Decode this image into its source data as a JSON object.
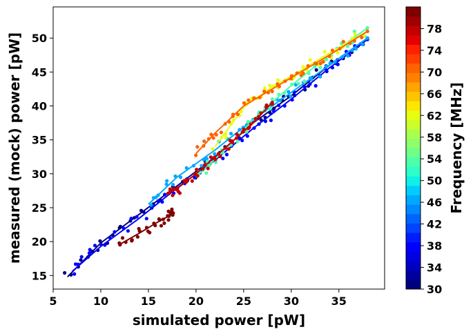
{
  "chart_data": {
    "type": "scatter",
    "title": "",
    "xlabel": "simulated power [pW]",
    "ylabel": "measured (mock) power [pW]",
    "xlim": [
      5,
      39.8
    ],
    "ylim": [
      13,
      54.6
    ],
    "xticks": [
      "5",
      "10",
      "15",
      "20",
      "25",
      "30",
      "35"
    ],
    "yticks": [
      "15",
      "20",
      "25",
      "30",
      "35",
      "40",
      "45",
      "50"
    ],
    "grid": false,
    "legend": "none",
    "colorbar": {
      "label": "Frequency [MHz]",
      "range": [
        30,
        82
      ],
      "ticks": [
        "30",
        "34",
        "38",
        "42",
        "46",
        "50",
        "54",
        "58",
        "62",
        "66",
        "70",
        "74",
        "78"
      ],
      "colormap": "jet",
      "colors": [
        "#00007f",
        "#00009f",
        "#0000c3",
        "#0000e3",
        "#0000ff",
        "#001cff",
        "#0044ff",
        "#0064ff",
        "#0088ff",
        "#00a8ff",
        "#00ccff",
        "#10f0e6",
        "#2cffca",
        "#4dffaa",
        "#6dff8a",
        "#8dff6a",
        "#aaff4d",
        "#caff2c",
        "#e6ff10",
        "#ffe600",
        "#ffc400",
        "#ffa400",
        "#ff8000",
        "#ff6200",
        "#ff3e00",
        "#ff2000",
        "#e30000",
        "#c30000",
        "#9f0000",
        "#7f0000"
      ]
    },
    "series": [
      {
        "frequency": 30,
        "x": [
          6.5,
          10,
          14,
          18,
          22,
          26,
          30,
          34,
          38
        ],
        "y": [
          14.8,
          19.8,
          24.0,
          28.2,
          32.5,
          37.5,
          41.5,
          46.0,
          50.0
        ]
      },
      {
        "frequency": 38,
        "x": [
          7,
          10,
          14,
          18,
          22,
          26,
          30,
          34,
          38
        ],
        "y": [
          15.6,
          19.3,
          23.4,
          27.9,
          32.0,
          36.7,
          41.0,
          45.6,
          49.8
        ]
      },
      {
        "frequency": 46,
        "x": [
          15,
          18,
          22,
          26,
          30,
          34,
          38
        ],
        "y": [
          25.5,
          29.5,
          33.5,
          38.0,
          42.0,
          46.0,
          50.0
        ]
      },
      {
        "frequency": 54,
        "x": [
          20,
          23,
          26,
          30,
          34,
          38
        ],
        "y": [
          29.5,
          33.5,
          38.0,
          43.0,
          47.5,
          51.5
        ]
      },
      {
        "frequency": 62,
        "x": [
          22,
          25,
          28,
          31,
          34,
          38
        ],
        "y": [
          34.0,
          39.8,
          42.8,
          45.2,
          47.8,
          51.0
        ]
      },
      {
        "frequency": 70,
        "x": [
          20,
          22,
          25,
          28,
          31,
          34,
          38
        ],
        "y": [
          33.0,
          36.0,
          40.0,
          42.5,
          45.0,
          47.5,
          51.0
        ]
      },
      {
        "frequency": 78,
        "x": [
          17,
          18,
          20,
          22,
          24,
          26,
          28
        ],
        "y": [
          27.0,
          27.8,
          30.0,
          32.5,
          35.0,
          37.5,
          40.5
        ]
      },
      {
        "frequency": 82,
        "x": [
          12,
          14,
          16,
          17.2,
          17.6
        ],
        "y": [
          19.6,
          21.2,
          22.9,
          23.8,
          24.2
        ]
      }
    ]
  }
}
